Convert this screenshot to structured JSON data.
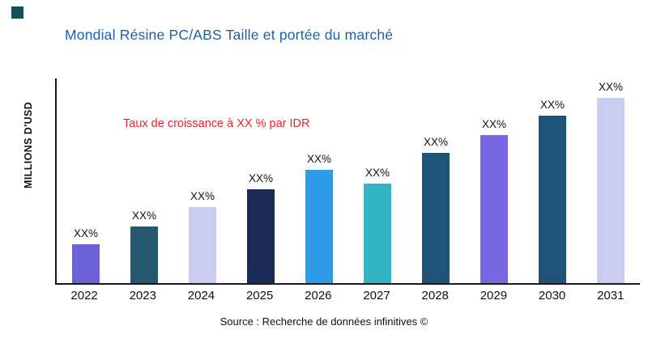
{
  "page": {
    "title": "Mondial Résine PC/ABS Taille et portée du marché",
    "annotation": "Taux de croissance à XX % par IDR",
    "y_axis_label": "MILLIONS D'USD",
    "source": "Source : Recherche de données infinitives ©"
  },
  "colors": {
    "title_text": "#1F5FA8",
    "annotation_text": "#E8232A",
    "logo_mark": "#14505B",
    "axis": "#1A1A1A"
  },
  "chart_data": {
    "type": "bar",
    "title": "Mondial Résine PC/ABS Taille et portée du marché",
    "xlabel": "",
    "ylabel": "MILLIONS D'USD",
    "categories": [
      "2022",
      "2023",
      "2024",
      "2025",
      "2026",
      "2027",
      "2028",
      "2029",
      "2030",
      "2031"
    ],
    "values": [
      20,
      29,
      39,
      48,
      58,
      51,
      67,
      76,
      86,
      95
    ],
    "value_labels": [
      "XX%",
      "XX%",
      "XX%",
      "XX%",
      "XX%",
      "XX%",
      "XX%",
      "XX%",
      "XX%",
      "XX%"
    ],
    "bar_colors": [
      "#6B61D8",
      "#24586F",
      "#C9CDF2",
      "#1C2A58",
      "#2E9BE6",
      "#31B5C4",
      "#1F5377",
      "#7767E0",
      "#1F5377",
      "#C9CDF2"
    ],
    "ylim": [
      0,
      105
    ],
    "grid": false,
    "legend_position": "none",
    "annotation": "Taux de croissance à XX % par IDR",
    "values_note": "values are relative bar heights estimated from pixels; actual figures masked as XX% in source image"
  }
}
